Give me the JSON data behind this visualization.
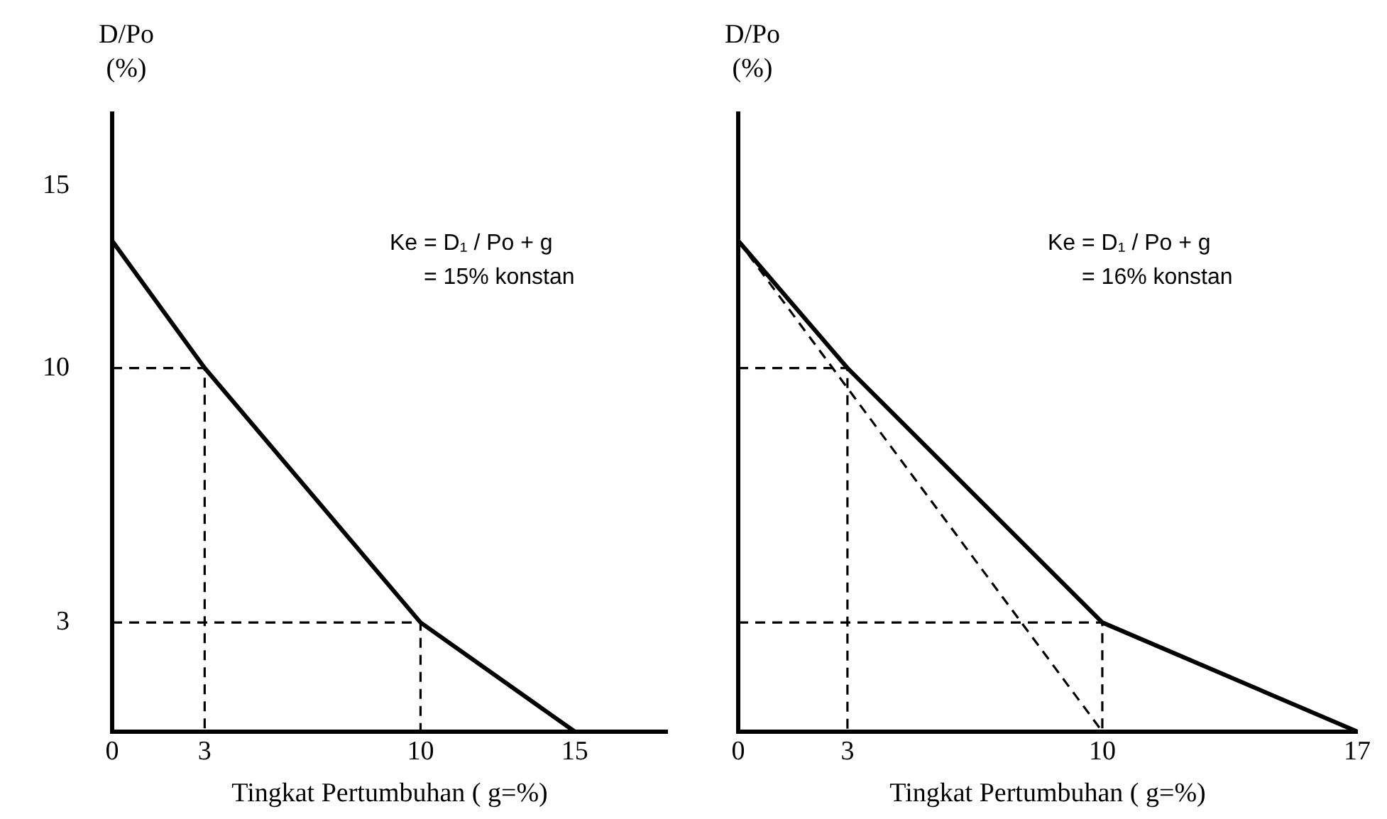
{
  "chart_data": [
    {
      "type": "line",
      "ylabel": "D/Po (%)",
      "xlabel": "Tingkat Pertumbuhan ( g=%)",
      "xlim": [
        0,
        18
      ],
      "xticks": [
        0,
        3,
        10,
        15
      ],
      "ylim": [
        0,
        17
      ],
      "yticks": [
        3,
        10,
        15
      ],
      "grid": false,
      "legend": false,
      "marker": "none",
      "annotations": [
        "Ke = D₁ / Po + g",
        "= 15% konstan"
      ],
      "series": [
        {
          "color": "#000000",
          "x": [
            0,
            3,
            10,
            15
          ],
          "values": [
            13.5,
            10,
            3,
            0
          ],
          "line_style": "solid"
        },
        {
          "color": "#000000",
          "x": [
            0,
            3,
            3
          ],
          "values": [
            10,
            10,
            0
          ],
          "line_style": "dashed"
        },
        {
          "color": "#000000",
          "x": [
            0,
            10,
            10
          ],
          "values": [
            3,
            3,
            0
          ],
          "line_style": "dashed"
        }
      ]
    },
    {
      "type": "line",
      "ylabel": "D/Po (%)",
      "xlabel": "Tingkat Pertumbuhan ( g=%)",
      "xlim": [
        0,
        17
      ],
      "xticks": [
        0,
        3,
        10,
        17
      ],
      "ylim": [
        0,
        17
      ],
      "tick_labels": "x",
      "grid": false,
      "legend": false,
      "marker": "none",
      "annotations": [
        "Ke = D₁ / Po + g",
        "= 16% konstan"
      ],
      "series": [
        {
          "color": "#000000",
          "x": [
            0,
            3,
            10,
            17
          ],
          "values": [
            13.5,
            10,
            3,
            0
          ],
          "line_style": "solid"
        },
        {
          "color": "#000000",
          "x": [
            0,
            10
          ],
          "values": [
            13.5,
            0
          ],
          "line_style": "dashed"
        },
        {
          "color": "#000000",
          "x": [
            0,
            3,
            3
          ],
          "values": [
            10,
            10,
            0
          ],
          "line_style": "dashed"
        },
        {
          "color": "#000000",
          "x": [
            0,
            10,
            10
          ],
          "values": [
            3,
            3,
            0
          ],
          "line_style": "dashed"
        }
      ]
    }
  ]
}
